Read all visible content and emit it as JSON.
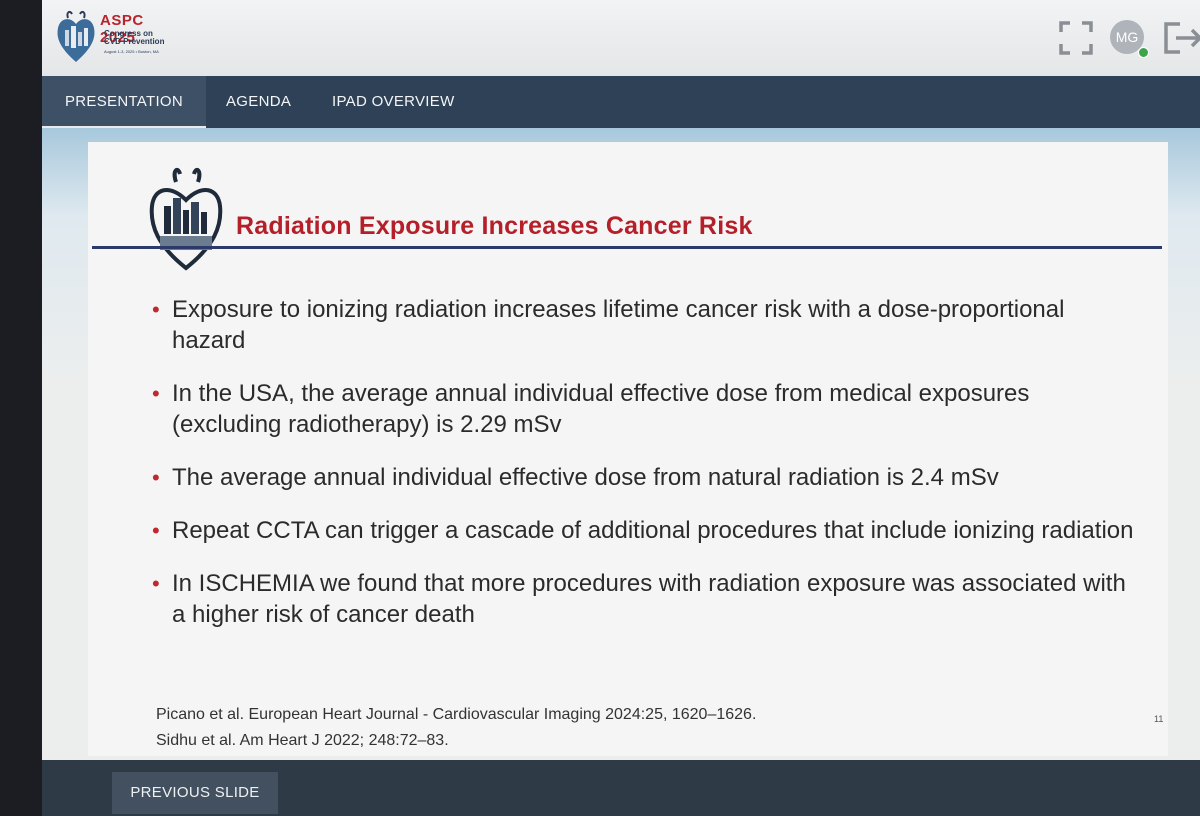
{
  "header": {
    "logo": {
      "title": "ASPC 2025",
      "subtitle_line1": "Congress on",
      "subtitle_line2": "CVD Prevention",
      "subtitle_line3": "August 1-3, 2025 • Boston, MA"
    },
    "user_initials": "MG",
    "icons": [
      "fullscreen-icon",
      "avatar",
      "logout-icon"
    ]
  },
  "nav": {
    "tabs": [
      {
        "label": "PRESENTATION",
        "active": true
      },
      {
        "label": "AGENDA",
        "active": false
      },
      {
        "label": "IPAD OVERVIEW",
        "active": false
      }
    ]
  },
  "slide": {
    "title": "Radiation Exposure Increases Cancer Risk",
    "bullets": [
      "Exposure to ionizing radiation increases lifetime cancer risk with a dose-proportional hazard",
      "In the USA, the average annual individual effective dose from medical exposures (excluding radiotherapy) is 2.29 mSv",
      "The average annual individual effective dose from natural radiation is 2.4 mSv",
      "Repeat CCTA can trigger a cascade of additional procedures that include ionizing radiation",
      "In ISCHEMIA we found that more procedures with radiation exposure was associated with a higher risk of cancer death"
    ],
    "references": [
      "Picano et al. European Heart Journal - Cardiovascular Imaging 2024:25, 1620–1626.",
      "Sidhu et al. Am Heart J 2022; 248:72–83."
    ],
    "page_number": "11"
  },
  "footer": {
    "previous_label": "PREVIOUS SLIDE"
  },
  "colors": {
    "nav_bg": "#2f4156",
    "title_red": "#b51f29",
    "rule_navy": "#2b3a6a",
    "footer_bg": "#2f3a47"
  }
}
